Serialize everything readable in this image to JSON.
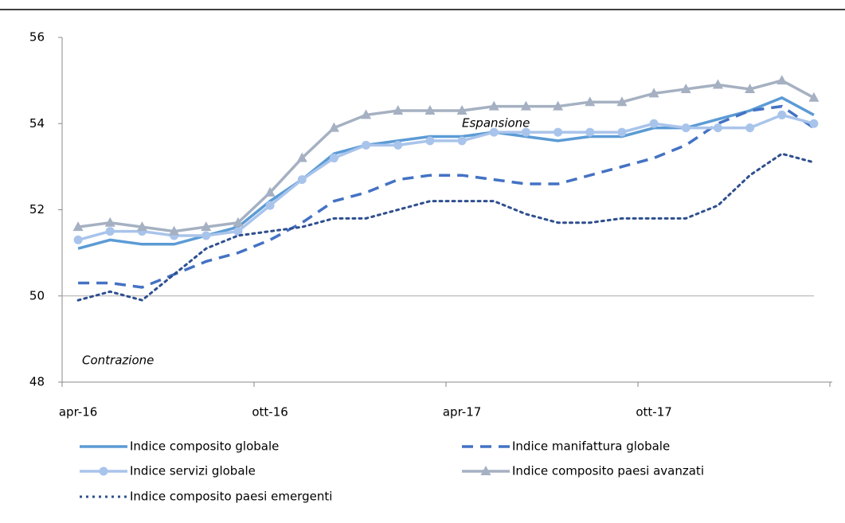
{
  "chart_data": {
    "type": "line",
    "categories": [
      "apr-16",
      null,
      null,
      null,
      null,
      null,
      "ott-16",
      null,
      null,
      null,
      null,
      null,
      "apr-17",
      null,
      null,
      null,
      null,
      null,
      "ott-17",
      null,
      null,
      null,
      null,
      null
    ],
    "series": [
      {
        "name": "Indice composito globale",
        "color": "#5b9bd5",
        "style": "solid",
        "marker": "none",
        "values": [
          51.1,
          51.3,
          51.2,
          51.2,
          51.4,
          51.6,
          52.2,
          52.7,
          53.3,
          53.5,
          53.6,
          53.7,
          53.7,
          53.8,
          53.7,
          53.6,
          53.7,
          53.7,
          53.9,
          53.9,
          54.1,
          54.3,
          54.6,
          54.2
        ]
      },
      {
        "name": "Indice manifattura globale",
        "color": "#4472c4",
        "style": "dashed",
        "marker": "none",
        "values": [
          50.3,
          50.3,
          50.2,
          50.5,
          50.8,
          51.0,
          51.3,
          51.7,
          52.2,
          52.4,
          52.7,
          52.8,
          52.8,
          52.7,
          52.6,
          52.6,
          52.8,
          53.0,
          53.2,
          53.5,
          54.0,
          54.3,
          54.4,
          53.9
        ]
      },
      {
        "name": "Indice servizi globale",
        "color": "#a9c4eb",
        "style": "solid",
        "marker": "circle",
        "values": [
          51.3,
          51.5,
          51.5,
          51.4,
          51.4,
          51.5,
          52.1,
          52.7,
          53.2,
          53.5,
          53.5,
          53.6,
          53.6,
          53.8,
          53.8,
          53.8,
          53.8,
          53.8,
          54.0,
          53.9,
          53.9,
          53.9,
          54.2,
          54.0
        ]
      },
      {
        "name": "Indice composito paesi avanzati",
        "color": "#a5b1c2",
        "style": "solid",
        "marker": "triangle",
        "values": [
          51.6,
          51.7,
          51.6,
          51.5,
          51.6,
          51.7,
          52.4,
          53.2,
          53.9,
          54.2,
          54.3,
          54.3,
          54.3,
          54.4,
          54.4,
          54.4,
          54.5,
          54.5,
          54.7,
          54.8,
          54.9,
          54.8,
          55.0,
          54.6
        ]
      },
      {
        "name": "Indice composito paesi emergenti",
        "color": "#2f4f8f",
        "style": "dotted",
        "marker": "none",
        "values": [
          49.9,
          50.1,
          49.9,
          50.5,
          51.1,
          51.4,
          51.5,
          51.6,
          51.8,
          51.8,
          52.0,
          52.2,
          52.2,
          52.2,
          51.9,
          51.7,
          51.7,
          51.8,
          51.8,
          51.8,
          52.1,
          52.8,
          53.3,
          53.1
        ]
      }
    ],
    "ylim": [
      48,
      56
    ],
    "yticks": [
      48,
      50,
      52,
      54,
      56
    ],
    "reference_line": 50,
    "annotations": [
      "Espansione",
      "Contrazione"
    ]
  }
}
